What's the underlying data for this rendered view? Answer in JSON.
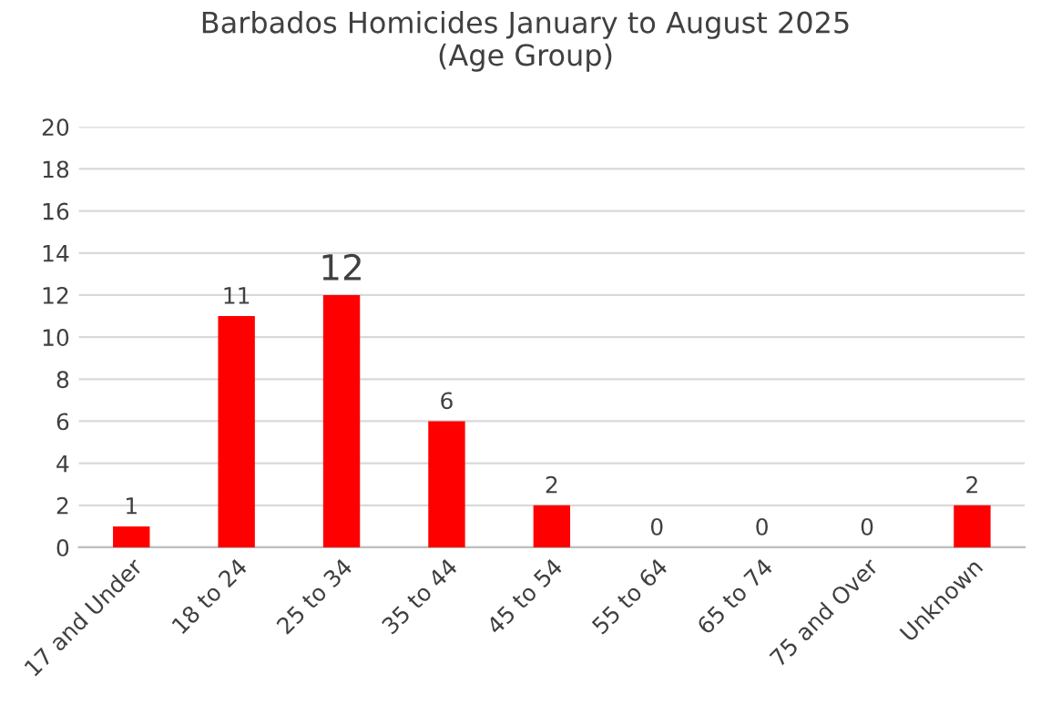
{
  "chart_data": {
    "type": "bar",
    "title": "Barbados Homicides January to August 2025\n(Age Group)",
    "categories": [
      "17 and Under",
      "18 to 24",
      "25 to 34",
      "35 to 44",
      "45 to 54",
      "55 to 64",
      "65 to 74",
      "75 and Over",
      "Unknown"
    ],
    "values": [
      1,
      11,
      12,
      6,
      2,
      0,
      0,
      0,
      2
    ],
    "color": "#ff0000",
    "ylim": [
      0,
      20
    ],
    "yticks": [
      0,
      2,
      4,
      6,
      8,
      10,
      12,
      14,
      16,
      18,
      20
    ],
    "grid": "y",
    "data_labels": true
  }
}
